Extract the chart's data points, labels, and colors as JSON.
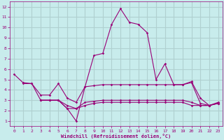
{
  "color": "#990077",
  "bg_color": "#c8ecec",
  "grid_color": "#b0d0d0",
  "xlabel": "Windchill (Refroidissement éolien,°C)",
  "xlim": [
    -0.5,
    23.5
  ],
  "ylim": [
    0.5,
    12.5
  ],
  "xticks": [
    0,
    1,
    2,
    3,
    4,
    5,
    6,
    7,
    8,
    9,
    10,
    11,
    12,
    13,
    14,
    15,
    16,
    17,
    18,
    19,
    20,
    21,
    22,
    23
  ],
  "yticks": [
    1,
    2,
    3,
    4,
    5,
    6,
    7,
    8,
    9,
    10,
    11,
    12
  ],
  "lines": [
    {
      "x": [
        0,
        1,
        2,
        3,
        4,
        5,
        6,
        7,
        8,
        9,
        10,
        11,
        12,
        13,
        14,
        15,
        16,
        17,
        18,
        19,
        20,
        21,
        22,
        23
      ],
      "y": [
        5.5,
        4.7,
        4.6,
        3.0,
        3.0,
        3.0,
        2.2,
        1.0,
        4.3,
        7.3,
        7.5,
        10.3,
        11.8,
        10.5,
        10.3,
        9.5,
        5.0,
        6.5,
        4.5,
        4.5,
        4.8,
        3.2,
        2.5,
        2.7
      ]
    },
    {
      "x": [
        1,
        2,
        3,
        4,
        5,
        6,
        7,
        8,
        9,
        10,
        11,
        12,
        13,
        14,
        15,
        16,
        17,
        18,
        19,
        20,
        21,
        22,
        23
      ],
      "y": [
        4.6,
        4.6,
        3.5,
        3.5,
        4.6,
        3.2,
        2.8,
        4.3,
        4.4,
        4.5,
        4.5,
        4.5,
        4.5,
        4.5,
        4.5,
        4.5,
        4.5,
        4.5,
        4.5,
        4.7,
        2.7,
        2.5,
        2.8
      ]
    },
    {
      "x": [
        3,
        4,
        5,
        6,
        7,
        8,
        9,
        10,
        11,
        12,
        13,
        14,
        15,
        16,
        17,
        18,
        19,
        20,
        21,
        22,
        23
      ],
      "y": [
        3.0,
        3.0,
        3.0,
        2.5,
        2.2,
        2.8,
        2.9,
        3.0,
        3.0,
        3.0,
        3.0,
        3.0,
        3.0,
        3.0,
        3.0,
        3.0,
        3.0,
        2.8,
        2.5,
        2.5,
        2.7
      ]
    },
    {
      "x": [
        3,
        4,
        5,
        6,
        7,
        8,
        9,
        10,
        11,
        12,
        13,
        14,
        15,
        16,
        17,
        18,
        19,
        20,
        21,
        22,
        23
      ],
      "y": [
        3.0,
        3.0,
        3.0,
        2.2,
        2.2,
        2.5,
        2.7,
        2.8,
        2.8,
        2.8,
        2.8,
        2.8,
        2.8,
        2.8,
        2.8,
        2.8,
        2.8,
        2.5,
        2.5,
        2.5,
        2.7
      ]
    }
  ]
}
